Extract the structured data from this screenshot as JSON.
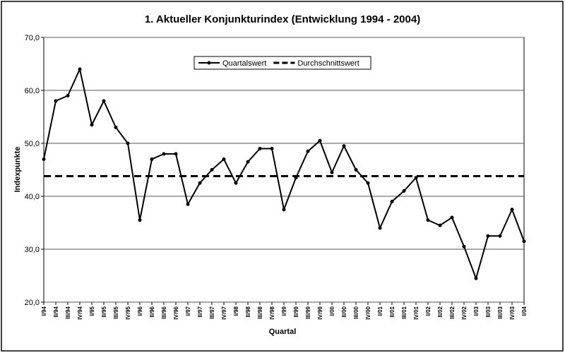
{
  "chart_data": {
    "type": "line",
    "title": "1. Aktueller Konjunkturindex (Entwicklung 1994 - 2004)",
    "x_label": "Quartal",
    "y_label": "Indexpunkte",
    "categories": [
      "I/94",
      "II/94",
      "III/94",
      "IV/94",
      "I/95",
      "II/95",
      "III/95",
      "IV/95",
      "I/96",
      "II/96",
      "III/96",
      "IV/96",
      "I/97",
      "II/97",
      "III/97",
      "IV/97",
      "I/98",
      "II/98",
      "III/98",
      "IV/98",
      "I/99",
      "II/99",
      "III/99",
      "IV/99",
      "I/00",
      "II/00",
      "III/00",
      "IV/00",
      "I/01",
      "II/01",
      "III/01",
      "IV/01",
      "I/02",
      "II/02",
      "III/02",
      "IV/02",
      "I/03",
      "II/03",
      "III/03",
      "IV/03",
      "I/04"
    ],
    "series": [
      {
        "name": "Quartalswert",
        "color": "#000000",
        "dashed": false,
        "markers": true,
        "values": [
          47,
          58,
          59,
          64,
          53.5,
          58,
          53,
          50,
          35.5,
          47,
          48,
          48,
          38.5,
          42.5,
          45,
          47,
          42.5,
          46.5,
          49,
          49,
          37.5,
          43.5,
          48.5,
          50.5,
          44.5,
          49.5,
          45,
          42.5,
          34,
          39,
          41,
          43.5,
          35.5,
          34.5,
          36,
          30.5,
          24.5,
          32.5,
          32.5,
          37.5,
          31.5
        ]
      },
      {
        "name": "Durchschnittswert",
        "color": "#000000",
        "dashed": true,
        "markers": false,
        "values": [
          43.8,
          43.8,
          43.8,
          43.8,
          43.8,
          43.8,
          43.8,
          43.8,
          43.8,
          43.8,
          43.8,
          43.8,
          43.8,
          43.8,
          43.8,
          43.8,
          43.8,
          43.8,
          43.8,
          43.8,
          43.8,
          43.8,
          43.8,
          43.8,
          43.8,
          43.8,
          43.8,
          43.8,
          43.8,
          43.8,
          43.8,
          43.8,
          43.8,
          43.8,
          43.8,
          43.8,
          43.8,
          43.8,
          43.8,
          43.8,
          43.8
        ]
      }
    ],
    "ylim": [
      20,
      70
    ],
    "yticks": [
      {
        "value": 20,
        "label": "20,0"
      },
      {
        "value": 30,
        "label": "30,0"
      },
      {
        "value": 40,
        "label": "40,0"
      },
      {
        "value": 50,
        "label": "50,0"
      },
      {
        "value": 60,
        "label": "60,0"
      },
      {
        "value": 70,
        "label": "70,0"
      }
    ],
    "grid": true,
    "legend": "top"
  }
}
